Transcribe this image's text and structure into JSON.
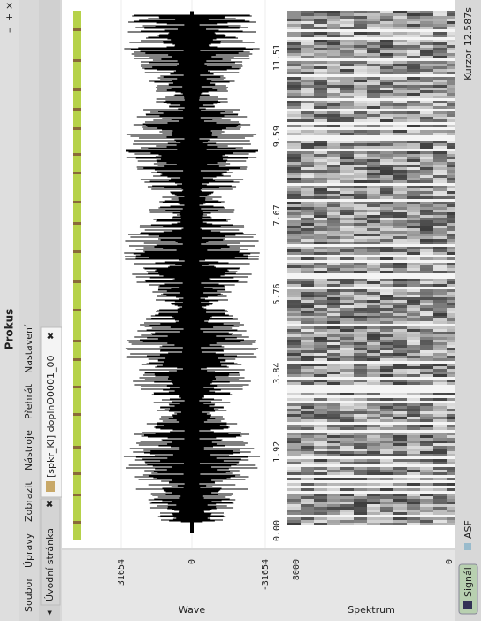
{
  "window": {
    "title": "Prokus"
  },
  "menu": [
    "Soubor",
    "Úpravy",
    "Zobrazit",
    "Nástroje",
    "Přehrát",
    "Nastavení"
  ],
  "tabs": [
    "Úvodní stránka",
    "[spkr_KI] doplnO0001_00"
  ],
  "wave": {
    "label": "Wave",
    "ticks": [
      "31654",
      "0",
      "-31654"
    ]
  },
  "spectrum": {
    "label": "Spektrum",
    "ticks": [
      "8000",
      "0"
    ]
  },
  "time_axis": [
    "0.00",
    "1.92",
    "3.84",
    "5.76",
    "7.67",
    "9.59",
    "11.51"
  ],
  "status": {
    "button": "Signál",
    "mode": "ASF",
    "cursor": "Kurzor 12.587s"
  }
}
